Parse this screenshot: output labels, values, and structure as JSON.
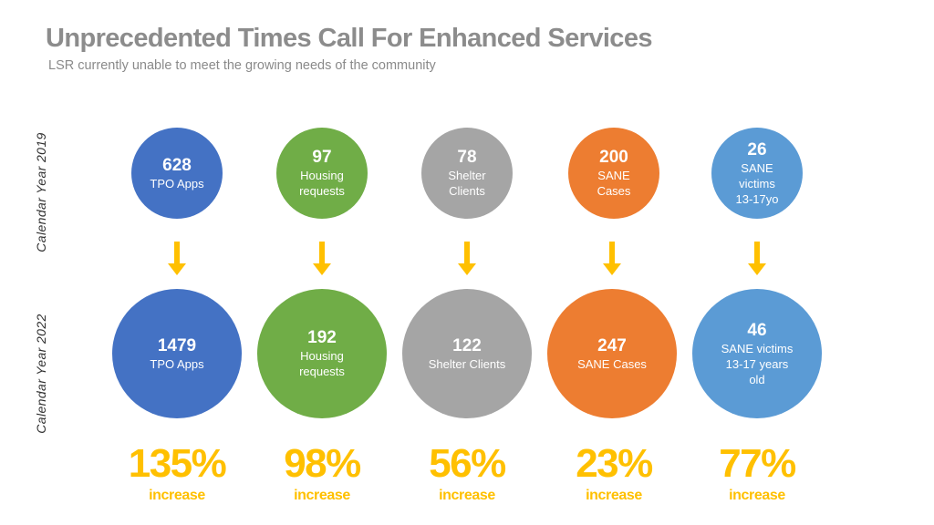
{
  "header": {
    "title": "Unprecedented Times Call For Enhanced Services",
    "subtitle": "LSR currently unable to meet the growing needs of the community"
  },
  "row_labels": {
    "year_2019": "Calendar Year 2019",
    "year_2022": "Calendar Year 2022"
  },
  "colors": {
    "tpo": "#4472c4",
    "housing": "#70ad47",
    "shelter": "#a5a5a5",
    "sane": "#ed7d31",
    "sane_victims": "#5b9bd5",
    "arrow": "#ffc000",
    "percent": "#ffc000"
  },
  "metrics": [
    {
      "y2019": {
        "value": "628",
        "label": "TPO Apps"
      },
      "y2022": {
        "value": "1479",
        "label": "TPO Apps"
      },
      "change": {
        "percent": "135%",
        "label": "increase"
      }
    },
    {
      "y2019": {
        "value": "97",
        "label": "Housing\nrequests"
      },
      "y2022": {
        "value": "192",
        "label": "Housing\nrequests"
      },
      "change": {
        "percent": "98%",
        "label": "increase"
      }
    },
    {
      "y2019": {
        "value": "78",
        "label": "Shelter\nClients"
      },
      "y2022": {
        "value": "122",
        "label": "Shelter Clients"
      },
      "change": {
        "percent": "56%",
        "label": "increase"
      }
    },
    {
      "y2019": {
        "value": "200",
        "label": "SANE\nCases"
      },
      "y2022": {
        "value": "247",
        "label": "SANE Cases"
      },
      "change": {
        "percent": "23%",
        "label": "increase"
      }
    },
    {
      "y2019": {
        "value": "26",
        "label": "SANE\nvictims\n13-17yo"
      },
      "y2022": {
        "value": "46",
        "label": "SANE victims\n13-17 years\nold"
      },
      "change": {
        "percent": "77%",
        "label": "increase"
      }
    }
  ]
}
